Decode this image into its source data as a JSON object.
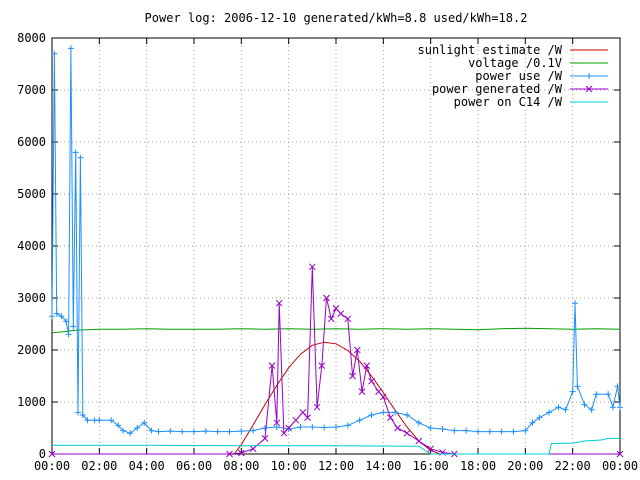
{
  "chart_data": {
    "type": "line",
    "title": "Power log: 2006-12-10 generated/kWh=8.8 used/kWh=18.2",
    "xlabel": "",
    "ylabel": "",
    "xlim": [
      0,
      24
    ],
    "ylim": [
      0,
      8000
    ],
    "grid": true,
    "legend_position": "top-right",
    "x_tick_labels": [
      "00:00",
      "02:00",
      "04:00",
      "06:00",
      "08:00",
      "10:00",
      "12:00",
      "14:00",
      "16:00",
      "18:00",
      "20:00",
      "22:00",
      "00:00"
    ],
    "y_tick_labels": [
      "0",
      "1000",
      "2000",
      "3000",
      "4000",
      "5000",
      "6000",
      "7000",
      "8000"
    ],
    "y_ticks": [
      0,
      1000,
      2000,
      3000,
      4000,
      5000,
      6000,
      7000,
      8000
    ],
    "series": [
      {
        "name": "sunlight estimate /W",
        "color": "#cc0000",
        "marker": "none",
        "points": [
          [
            7.7,
            0
          ],
          [
            8.0,
            180
          ],
          [
            8.5,
            560
          ],
          [
            9.0,
            950
          ],
          [
            9.5,
            1320
          ],
          [
            10.0,
            1660
          ],
          [
            10.5,
            1920
          ],
          [
            11.0,
            2090
          ],
          [
            11.5,
            2150
          ],
          [
            12.0,
            2120
          ],
          [
            12.5,
            1990
          ],
          [
            13.0,
            1780
          ],
          [
            13.5,
            1500
          ],
          [
            14.0,
            1180
          ],
          [
            14.5,
            840
          ],
          [
            15.0,
            520
          ],
          [
            15.5,
            250
          ],
          [
            16.0,
            70
          ],
          [
            16.4,
            0
          ]
        ]
      },
      {
        "name": "voltage /0.1V",
        "color": "#00a000",
        "marker": "none",
        "points": [
          [
            0,
            2330
          ],
          [
            0.5,
            2350
          ],
          [
            1.0,
            2380
          ],
          [
            2.0,
            2400
          ],
          [
            3.0,
            2400
          ],
          [
            4.0,
            2410
          ],
          [
            5.0,
            2400
          ],
          [
            6.0,
            2400
          ],
          [
            7.0,
            2400
          ],
          [
            8.0,
            2410
          ],
          [
            9.0,
            2400
          ],
          [
            10.0,
            2410
          ],
          [
            11.0,
            2400
          ],
          [
            12.0,
            2410
          ],
          [
            13.0,
            2400
          ],
          [
            14.0,
            2410
          ],
          [
            15.0,
            2400
          ],
          [
            16.0,
            2410
          ],
          [
            17.0,
            2400
          ],
          [
            18.0,
            2390
          ],
          [
            19.0,
            2410
          ],
          [
            20.0,
            2420
          ],
          [
            21.0,
            2410
          ],
          [
            22.0,
            2400
          ],
          [
            23.0,
            2410
          ],
          [
            24.0,
            2400
          ]
        ]
      },
      {
        "name": "power use /W",
        "color": "#1e90ff",
        "marker": "plus",
        "points": [
          [
            0,
            2650
          ],
          [
            0.1,
            7700
          ],
          [
            0.2,
            2700
          ],
          [
            0.4,
            2650
          ],
          [
            0.6,
            2550
          ],
          [
            0.7,
            2300
          ],
          [
            0.8,
            7800
          ],
          [
            0.9,
            2450
          ],
          [
            1.0,
            5800
          ],
          [
            1.1,
            800
          ],
          [
            1.2,
            5700
          ],
          [
            1.3,
            750
          ],
          [
            1.5,
            650
          ],
          [
            1.8,
            650
          ],
          [
            2.0,
            650
          ],
          [
            2.5,
            650
          ],
          [
            2.8,
            550
          ],
          [
            3.0,
            450
          ],
          [
            3.3,
            400
          ],
          [
            3.6,
            500
          ],
          [
            3.9,
            600
          ],
          [
            4.2,
            450
          ],
          [
            4.5,
            430
          ],
          [
            5.0,
            440
          ],
          [
            5.5,
            430
          ],
          [
            6.0,
            430
          ],
          [
            6.5,
            440
          ],
          [
            7.0,
            430
          ],
          [
            7.5,
            430
          ],
          [
            8.0,
            440
          ],
          [
            8.5,
            450
          ],
          [
            9.0,
            500
          ],
          [
            9.5,
            520
          ],
          [
            10.0,
            480
          ],
          [
            10.5,
            520
          ],
          [
            11.0,
            520
          ],
          [
            11.5,
            510
          ],
          [
            12.0,
            520
          ],
          [
            12.5,
            550
          ],
          [
            13.0,
            650
          ],
          [
            13.5,
            750
          ],
          [
            14.0,
            800
          ],
          [
            14.5,
            800
          ],
          [
            15.0,
            750
          ],
          [
            15.5,
            600
          ],
          [
            16.0,
            500
          ],
          [
            16.5,
            480
          ],
          [
            17.0,
            450
          ],
          [
            17.5,
            450
          ],
          [
            18.0,
            430
          ],
          [
            18.5,
            430
          ],
          [
            19.0,
            430
          ],
          [
            19.5,
            430
          ],
          [
            20.0,
            450
          ],
          [
            20.3,
            600
          ],
          [
            20.6,
            700
          ],
          [
            21.0,
            800
          ],
          [
            21.4,
            900
          ],
          [
            21.7,
            850
          ],
          [
            22.0,
            1200
          ],
          [
            22.1,
            2900
          ],
          [
            22.2,
            1300
          ],
          [
            22.5,
            950
          ],
          [
            22.8,
            850
          ],
          [
            23.0,
            1150
          ],
          [
            23.5,
            1150
          ],
          [
            23.7,
            900
          ],
          [
            23.9,
            1300
          ],
          [
            24.0,
            900
          ]
        ]
      },
      {
        "name": "power generated /W",
        "color": "#9900cc",
        "marker": "x",
        "points": [
          [
            0,
            0
          ],
          [
            7.5,
            0
          ],
          [
            8.0,
            20
          ],
          [
            8.5,
            100
          ],
          [
            9.0,
            300
          ],
          [
            9.3,
            1700
          ],
          [
            9.5,
            600
          ],
          [
            9.6,
            2900
          ],
          [
            9.8,
            400
          ],
          [
            10.0,
            500
          ],
          [
            10.3,
            650
          ],
          [
            10.6,
            800
          ],
          [
            10.8,
            700
          ],
          [
            11.0,
            3600
          ],
          [
            11.2,
            900
          ],
          [
            11.4,
            1700
          ],
          [
            11.6,
            3000
          ],
          [
            11.8,
            2600
          ],
          [
            12.0,
            2800
          ],
          [
            12.2,
            2700
          ],
          [
            12.5,
            2600
          ],
          [
            12.7,
            1500
          ],
          [
            12.9,
            2000
          ],
          [
            13.1,
            1200
          ],
          [
            13.3,
            1700
          ],
          [
            13.5,
            1400
          ],
          [
            13.8,
            1200
          ],
          [
            14.0,
            1100
          ],
          [
            14.3,
            700
          ],
          [
            14.6,
            500
          ],
          [
            15.0,
            400
          ],
          [
            15.5,
            250
          ],
          [
            16.0,
            100
          ],
          [
            16.5,
            30
          ],
          [
            17.0,
            0
          ],
          [
            24.0,
            0
          ]
        ]
      },
      {
        "name": "power on C14 /W",
        "color": "#00cccc",
        "marker": "none",
        "points": [
          [
            0,
            170
          ],
          [
            4.0,
            170
          ],
          [
            8.0,
            160
          ],
          [
            12.0,
            160
          ],
          [
            15.0,
            150
          ],
          [
            15.5,
            150
          ],
          [
            16.0,
            0
          ],
          [
            20.0,
            0
          ],
          [
            21.0,
            0
          ],
          [
            21.1,
            200
          ],
          [
            22.0,
            210
          ],
          [
            22.5,
            250
          ],
          [
            23.2,
            270
          ],
          [
            23.5,
            300
          ],
          [
            24.0,
            300
          ]
        ]
      }
    ]
  }
}
